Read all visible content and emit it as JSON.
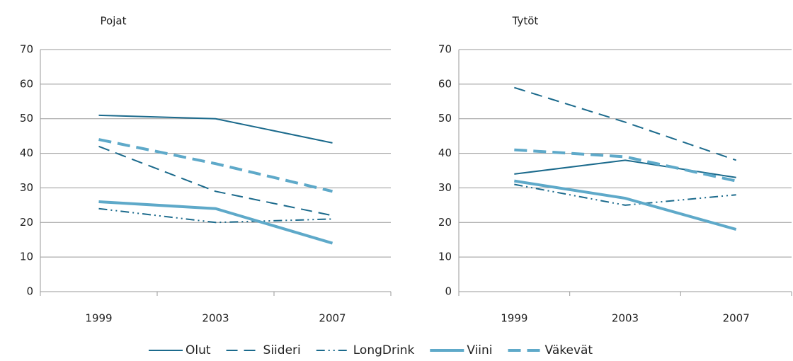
{
  "chart_data": [
    {
      "type": "line",
      "title": "Pojat",
      "categories": [
        "1999",
        "2003",
        "2007"
      ],
      "ylim": [
        0,
        70
      ],
      "yticks": [
        0,
        10,
        20,
        30,
        40,
        50,
        60,
        70
      ],
      "grid": true,
      "series": [
        {
          "name": "Olut",
          "color": "#1b6a8c",
          "style": "solid",
          "values": [
            51,
            50,
            43
          ]
        },
        {
          "name": "Siideri",
          "color": "#1b6a8c",
          "style": "dashed",
          "values": [
            42,
            29,
            22
          ]
        },
        {
          "name": "LongDrink",
          "color": "#1b6a8c",
          "style": "dashdotdot",
          "values": [
            24,
            20,
            21
          ]
        },
        {
          "name": "Viini",
          "color": "#5ea9c9",
          "style": "thick-solid",
          "values": [
            26,
            24,
            14
          ]
        },
        {
          "name": "Väkevät",
          "color": "#5ea9c9",
          "style": "thick-dashed",
          "values": [
            44,
            37,
            29
          ]
        }
      ]
    },
    {
      "type": "line",
      "title": "Tytöt",
      "categories": [
        "1999",
        "2003",
        "2007"
      ],
      "ylim": [
        0,
        70
      ],
      "yticks": [
        0,
        10,
        20,
        30,
        40,
        50,
        60,
        70
      ],
      "grid": true,
      "series": [
        {
          "name": "Olut",
          "color": "#1b6a8c",
          "style": "solid",
          "values": [
            34,
            38,
            33
          ]
        },
        {
          "name": "Siideri",
          "color": "#1b6a8c",
          "style": "dashed",
          "values": [
            59,
            49,
            38
          ]
        },
        {
          "name": "LongDrink",
          "color": "#1b6a8c",
          "style": "dashdotdot",
          "values": [
            31,
            25,
            28
          ]
        },
        {
          "name": "Viini",
          "color": "#5ea9c9",
          "style": "thick-solid",
          "values": [
            32,
            27,
            18
          ]
        },
        {
          "name": "Väkevät",
          "color": "#5ea9c9",
          "style": "thick-dashed",
          "values": [
            41,
            39,
            32
          ]
        }
      ]
    }
  ]
}
